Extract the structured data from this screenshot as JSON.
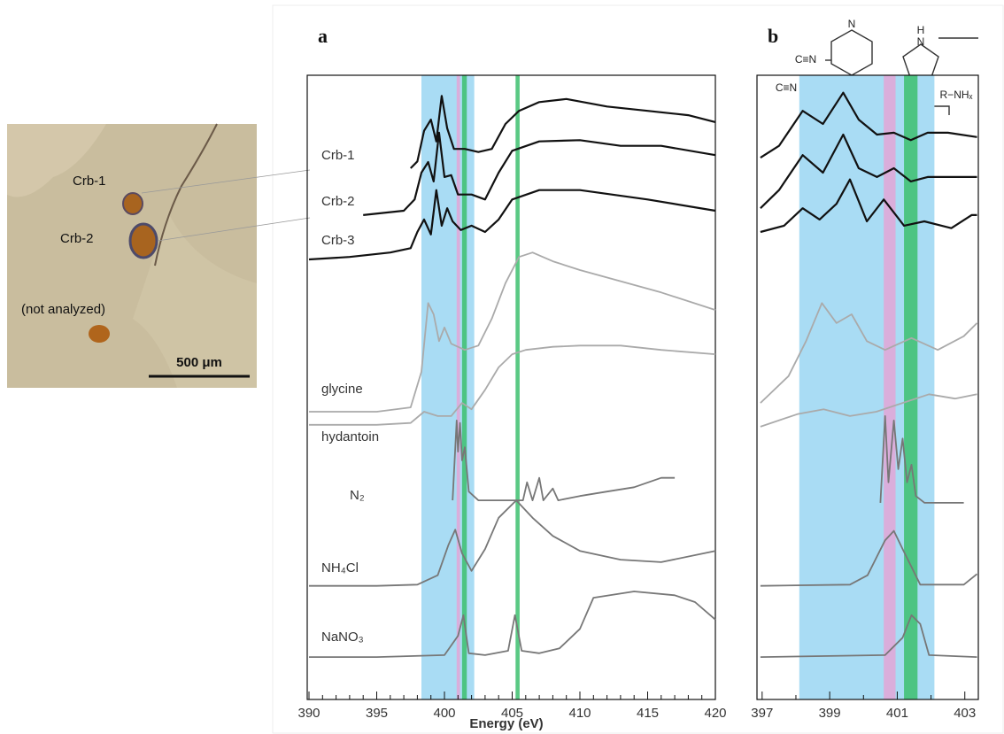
{
  "photo": {
    "labels": [
      "Crb-1",
      "Crb-2",
      "(not analyzed)"
    ],
    "scale_bar": "500 μm"
  },
  "structures": {
    "labels": [
      "C≡N",
      "N",
      "N",
      "H",
      "C≡N",
      "R−NHₓ"
    ]
  },
  "chart_data": [
    {
      "type": "line",
      "label": "a",
      "x_label": "Energy (eV)",
      "xlim": [
        390,
        420
      ],
      "ylim": [
        0,
        100
      ],
      "xticks": [
        390,
        395,
        400,
        405,
        410,
        415,
        420
      ],
      "xminor": [
        391,
        392,
        393,
        394,
        396,
        397,
        398,
        399,
        401,
        402,
        403,
        404,
        406,
        407,
        408,
        409,
        411,
        412,
        413,
        414,
        416,
        417,
        418,
        419
      ],
      "bands": [
        {
          "range": [
            398.3,
            402.2
          ],
          "color": "#a9dcf4"
        },
        {
          "range": [
            400.9,
            401.15
          ],
          "color": "#e3a6d6"
        },
        {
          "range": [
            401.3,
            401.65
          ],
          "color": "#3dbf6f"
        },
        {
          "range": [
            405.25,
            405.55
          ],
          "color": "#3dbf6f"
        }
      ],
      "series": [
        {
          "name": "Crb-1",
          "color": "#111111",
          "x": [
            397.5,
            398,
            398.5,
            399,
            399.4,
            399.8,
            400.2,
            400.7,
            401.5,
            402.5,
            403.5,
            404.5,
            405.5,
            407,
            409,
            412,
            415,
            418,
            420
          ],
          "values": [
            85.1,
            86.2,
            91.1,
            92.9,
            89.4,
            96.7,
            91.5,
            88.2,
            88.2,
            87.7,
            88.2,
            92.2,
            94.3,
            95.7,
            96.2,
            95.0,
            94.3,
            93.6,
            92.5
          ]
        },
        {
          "name": "Crb-2",
          "color": "#111111",
          "x": [
            394,
            397,
            397.8,
            398.3,
            398.8,
            399.2,
            399.6,
            400,
            400.5,
            401,
            402,
            403,
            404,
            405,
            407,
            410,
            413,
            416,
            420
          ],
          "values": [
            77.6,
            78.3,
            80.1,
            84.4,
            86.1,
            83.0,
            90.8,
            83.7,
            84.0,
            80.9,
            80.9,
            80.1,
            84.4,
            87.9,
            89.4,
            89.6,
            88.7,
            88.7,
            87.2
          ]
        },
        {
          "name": "Crb-3",
          "color": "#111111",
          "x": [
            390,
            393,
            396,
            397.5,
            398,
            398.5,
            399,
            399.4,
            399.8,
            400.2,
            400.6,
            401.2,
            402,
            403,
            404,
            405,
            407,
            410,
            415,
            420
          ],
          "values": [
            70.5,
            70.9,
            71.6,
            72.3,
            74.9,
            76.9,
            74.5,
            81.6,
            75.9,
            78.7,
            76.6,
            75.2,
            75.9,
            74.9,
            76.9,
            80.1,
            81.6,
            81.6,
            80.1,
            78.3
          ]
        },
        {
          "name": "glycine",
          "color": "#aaaaaa",
          "x": [
            390,
            395,
            397.5,
            398.3,
            398.8,
            399.2,
            399.6,
            400,
            400.5,
            401.5,
            402.5,
            403.5,
            404.5,
            405.5,
            406.5,
            408,
            410,
            413,
            416,
            420
          ],
          "values": [
            46.1,
            46.1,
            46.8,
            52.5,
            63.5,
            61.7,
            57.4,
            59.6,
            57.0,
            56.0,
            56.7,
            61.0,
            66.7,
            70.9,
            71.6,
            70.2,
            68.8,
            67.0,
            65.2,
            62.4
          ]
        },
        {
          "name": "hydantoin",
          "color": "#aaaaaa",
          "x": [
            390,
            395,
            397.5,
            398.5,
            399.5,
            400.5,
            401.3,
            402,
            403,
            404,
            405,
            406,
            408,
            410,
            413,
            416,
            420
          ],
          "values": [
            44.0,
            44.0,
            44.3,
            46.1,
            45.4,
            45.4,
            47.5,
            46.5,
            49.6,
            53.2,
            55.3,
            56.0,
            56.5,
            56.7,
            56.7,
            56.0,
            55.3
          ]
        },
        {
          "name": "N₂",
          "color": "#777777",
          "x": [
            400.6,
            400.9,
            401.0,
            401.15,
            401.3,
            401.5,
            401.8,
            402.5,
            404,
            405.8,
            406.1,
            406.5,
            407,
            407.3,
            408,
            408.4,
            410,
            412,
            414,
            416,
            417
          ],
          "values": [
            31.9,
            44.7,
            39.7,
            44.3,
            38.3,
            40.4,
            33.3,
            31.9,
            31.9,
            31.9,
            34.8,
            31.9,
            35.5,
            31.9,
            33.8,
            31.9,
            32.6,
            33.3,
            34.0,
            35.5,
            35.5
          ]
        },
        {
          "name": "NH₄Cl",
          "color": "#777777",
          "x": [
            390,
            395,
            398,
            399.5,
            400.3,
            400.8,
            401.3,
            402,
            403,
            404,
            405.3,
            406.5,
            408,
            410,
            413,
            416,
            420
          ],
          "values": [
            18.2,
            18.2,
            18.4,
            19.9,
            24.8,
            27.2,
            23.4,
            20.6,
            24.1,
            29.1,
            31.9,
            29.1,
            26.2,
            23.8,
            22.4,
            22.0,
            23.8
          ]
        },
        {
          "name": "NaNO₃",
          "color": "#777777",
          "x": [
            390,
            395,
            400,
            401,
            401.4,
            401.8,
            403,
            404.7,
            405.2,
            405.7,
            407,
            408.5,
            410,
            411,
            414,
            417,
            418.5,
            420
          ],
          "values": [
            6.8,
            6.8,
            7.1,
            10.2,
            13.5,
            7.4,
            7.1,
            7.8,
            13.5,
            7.8,
            7.4,
            8.2,
            11.3,
            16.3,
            17.3,
            16.7,
            15.6,
            12.8
          ]
        }
      ]
    },
    {
      "type": "line",
      "label": "b",
      "xlim": [
        396.9,
        403.4
      ],
      "ylim": [
        0,
        100
      ],
      "xticks": [
        397,
        399,
        401,
        403
      ],
      "xminor": [
        398,
        400,
        402
      ],
      "bands": [
        {
          "range": [
            398.1,
            402.1
          ],
          "color": "#a9dcf4"
        },
        {
          "range": [
            400.6,
            400.95
          ],
          "color": "#e3a6d6"
        },
        {
          "range": [
            401.2,
            401.6
          ],
          "color": "#3dbf6f"
        }
      ],
      "series": [
        {
          "color": "#111111",
          "x": [
            396.95,
            397.5,
            398.2,
            398.8,
            399.4,
            399.86,
            400.4,
            400.9,
            401.4,
            401.9,
            402.5,
            403.36
          ],
          "values": [
            86.8,
            88.7,
            94.3,
            92.2,
            97.2,
            92.9,
            90.5,
            90.8,
            89.6,
            90.8,
            90.8,
            90.1
          ]
        },
        {
          "color": "#111111",
          "x": [
            396.95,
            397.5,
            398.2,
            398.8,
            399.4,
            399.86,
            400.4,
            400.9,
            401.4,
            401.9,
            402.5,
            403.36
          ],
          "values": [
            78.7,
            81.6,
            87.2,
            84.4,
            90.5,
            85.1,
            83.7,
            85.1,
            83.0,
            83.7,
            83.7,
            83.7
          ]
        },
        {
          "color": "#111111",
          "x": [
            396.95,
            397.65,
            398.2,
            398.7,
            399.2,
            399.6,
            400.1,
            400.6,
            401.2,
            401.8,
            402.6,
            403.2,
            403.36
          ],
          "values": [
            74.9,
            75.9,
            78.7,
            76.9,
            79.4,
            83.3,
            76.6,
            80.1,
            75.9,
            76.6,
            75.5,
            77.6,
            77.6
          ]
        },
        {
          "color": "#aaaaaa",
          "x": [
            396.95,
            397.78,
            398.3,
            398.77,
            399.2,
            399.65,
            400.1,
            400.64,
            401.42,
            402.2,
            402.97,
            403.36
          ],
          "values": [
            47.5,
            51.8,
            57.4,
            63.5,
            60.3,
            61.7,
            57.4,
            56.0,
            57.9,
            56.0,
            58.2,
            60.3
          ]
        },
        {
          "color": "#aaaaaa",
          "x": [
            396.95,
            398.04,
            398.82,
            399.6,
            400.38,
            401.16,
            401.94,
            402.71,
            403.36
          ],
          "values": [
            43.7,
            45.7,
            46.5,
            45.4,
            46.1,
            47.5,
            48.9,
            48.2,
            48.9
          ]
        },
        {
          "color": "#777777",
          "x": [
            400.5,
            400.64,
            400.74,
            400.9,
            401.03,
            401.16,
            401.29,
            401.42,
            401.55,
            401.81,
            402.97
          ],
          "values": [
            31.5,
            45.4,
            34.8,
            44.7,
            36.9,
            41.8,
            34.8,
            37.6,
            32.6,
            31.5,
            31.5
          ]
        },
        {
          "color": "#777777",
          "x": [
            396.95,
            399.6,
            400.12,
            400.64,
            400.9,
            401.16,
            401.68,
            402.97,
            403.36
          ],
          "values": [
            18.2,
            18.4,
            19.9,
            25.5,
            27.0,
            24.1,
            18.4,
            18.4,
            20.1
          ]
        },
        {
          "color": "#777777",
          "x": [
            396.95,
            400.64,
            401.16,
            401.42,
            401.68,
            401.94,
            403.36
          ],
          "values": [
            6.8,
            7.1,
            9.9,
            13.5,
            12.1,
            7.1,
            6.8
          ]
        }
      ]
    }
  ]
}
